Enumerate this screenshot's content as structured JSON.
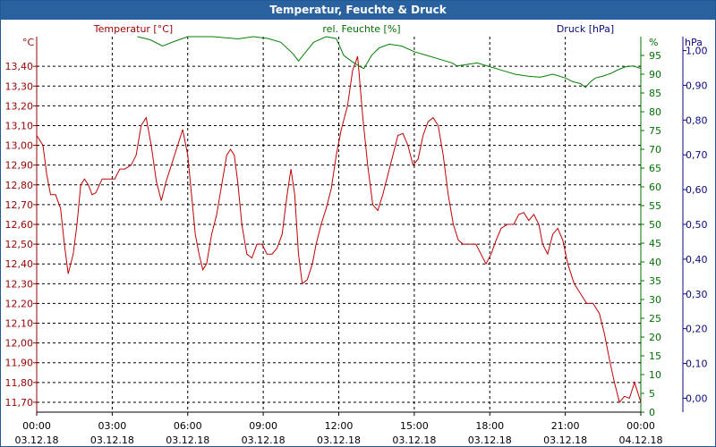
{
  "window": {
    "title": "Temperatur, Feuchte & Druck"
  },
  "chart_data": {
    "type": "line",
    "title": "Temperatur, Feuchte & Druck",
    "x_ticks": [
      {
        "time": "00:00",
        "date": "03.12.18"
      },
      {
        "time": "03:00",
        "date": "03.12.18"
      },
      {
        "time": "06:00",
        "date": "03.12.18"
      },
      {
        "time": "09:00",
        "date": "03.12.18"
      },
      {
        "time": "12:00",
        "date": "03.12.18"
      },
      {
        "time": "15:00",
        "date": "03.12.18"
      },
      {
        "time": "18:00",
        "date": "03.12.18"
      },
      {
        "time": "21:00",
        "date": "03.12.18"
      },
      {
        "time": "00:00",
        "date": "04.12.18"
      }
    ],
    "x_range_hours": [
      0,
      24
    ],
    "axes": {
      "temperature": {
        "label": "Temperatur [°C]",
        "unit": "°C",
        "color": "#9b0000",
        "range": [
          11.65,
          13.55
        ],
        "ticks": [
          "13,40",
          "13,30",
          "13,20",
          "13,10",
          "13,00",
          "12,90",
          "12,80",
          "12,70",
          "12,60",
          "12,50",
          "12,40",
          "12,30",
          "12,20",
          "12,10",
          "12,00",
          "11,90",
          "11,80",
          "11,70"
        ]
      },
      "humidity": {
        "label": "rel. Feuchte [%]",
        "unit": "%",
        "color": "#007000",
        "range": [
          0,
          100
        ],
        "ticks": [
          "95",
          "90",
          "85",
          "80",
          "75",
          "70",
          "65",
          "60",
          "55",
          "50",
          "45",
          "40",
          "35",
          "30",
          "25",
          "20",
          "15",
          "10",
          "5",
          "0"
        ]
      },
      "pressure": {
        "label": "Druck [hPa]",
        "unit": "hPa",
        "color": "#0a0a80",
        "range": [
          -0.04,
          1.04
        ],
        "ticks": [
          "1,00",
          "0,90",
          "0,80",
          "0,70",
          "0,60",
          "0,50",
          "0,40",
          "0,30",
          "0,20",
          "0,10",
          "0,00"
        ]
      }
    },
    "grid": true,
    "series": [
      {
        "name": "Temperatur [°C]",
        "axis": "temperature",
        "color": "#c00000",
        "points": [
          [
            0,
            13.05
          ],
          [
            0.25,
            13.0
          ],
          [
            0.4,
            12.85
          ],
          [
            0.55,
            12.75
          ],
          [
            0.75,
            12.75
          ],
          [
            0.95,
            12.68
          ],
          [
            1.1,
            12.5
          ],
          [
            1.25,
            12.35
          ],
          [
            1.45,
            12.45
          ],
          [
            1.6,
            12.6
          ],
          [
            1.75,
            12.8
          ],
          [
            1.9,
            12.83
          ],
          [
            2.05,
            12.8
          ],
          [
            2.2,
            12.75
          ],
          [
            2.35,
            12.76
          ],
          [
            2.6,
            12.83
          ],
          [
            2.85,
            12.83
          ],
          [
            3.1,
            12.83
          ],
          [
            3.3,
            12.88
          ],
          [
            3.5,
            12.88
          ],
          [
            3.75,
            12.9
          ],
          [
            3.95,
            12.95
          ],
          [
            4.15,
            13.1
          ],
          [
            4.35,
            13.14
          ],
          [
            4.55,
            13.0
          ],
          [
            4.75,
            12.82
          ],
          [
            4.95,
            12.72
          ],
          [
            5.15,
            12.82
          ],
          [
            5.4,
            12.92
          ],
          [
            5.6,
            13.0
          ],
          [
            5.8,
            13.08
          ],
          [
            6.0,
            12.95
          ],
          [
            6.15,
            12.75
          ],
          [
            6.3,
            12.55
          ],
          [
            6.45,
            12.45
          ],
          [
            6.6,
            12.37
          ],
          [
            6.75,
            12.4
          ],
          [
            6.95,
            12.55
          ],
          [
            7.15,
            12.65
          ],
          [
            7.35,
            12.8
          ],
          [
            7.55,
            12.95
          ],
          [
            7.7,
            12.98
          ],
          [
            7.85,
            12.95
          ],
          [
            8.0,
            12.8
          ],
          [
            8.15,
            12.6
          ],
          [
            8.35,
            12.45
          ],
          [
            8.55,
            12.43
          ],
          [
            8.75,
            12.5
          ],
          [
            8.95,
            12.5
          ],
          [
            9.15,
            12.45
          ],
          [
            9.35,
            12.45
          ],
          [
            9.55,
            12.48
          ],
          [
            9.75,
            12.55
          ],
          [
            9.95,
            12.75
          ],
          [
            10.1,
            12.88
          ],
          [
            10.25,
            12.75
          ],
          [
            10.4,
            12.45
          ],
          [
            10.55,
            12.3
          ],
          [
            10.75,
            12.32
          ],
          [
            10.95,
            12.4
          ],
          [
            11.1,
            12.5
          ],
          [
            11.3,
            12.6
          ],
          [
            11.5,
            12.68
          ],
          [
            11.7,
            12.78
          ],
          [
            11.9,
            12.95
          ],
          [
            12.1,
            13.08
          ],
          [
            12.35,
            13.2
          ],
          [
            12.55,
            13.38
          ],
          [
            12.75,
            13.45
          ],
          [
            12.95,
            13.15
          ],
          [
            13.15,
            12.9
          ],
          [
            13.35,
            12.7
          ],
          [
            13.55,
            12.67
          ],
          [
            13.75,
            12.75
          ],
          [
            13.95,
            12.85
          ],
          [
            14.15,
            12.95
          ],
          [
            14.35,
            13.05
          ],
          [
            14.55,
            13.06
          ],
          [
            14.75,
            13.0
          ],
          [
            14.95,
            12.9
          ],
          [
            15.15,
            12.93
          ],
          [
            15.35,
            13.05
          ],
          [
            15.55,
            13.12
          ],
          [
            15.75,
            13.14
          ],
          [
            15.95,
            13.1
          ],
          [
            16.15,
            12.95
          ],
          [
            16.35,
            12.75
          ],
          [
            16.55,
            12.6
          ],
          [
            16.75,
            12.52
          ],
          [
            16.95,
            12.5
          ],
          [
            17.2,
            12.5
          ],
          [
            17.45,
            12.5
          ],
          [
            17.65,
            12.45
          ],
          [
            17.85,
            12.4
          ],
          [
            18.05,
            12.45
          ],
          [
            18.25,
            12.52
          ],
          [
            18.45,
            12.58
          ],
          [
            18.7,
            12.6
          ],
          [
            18.95,
            12.6
          ],
          [
            19.15,
            12.65
          ],
          [
            19.35,
            12.66
          ],
          [
            19.55,
            12.62
          ],
          [
            19.75,
            12.65
          ],
          [
            19.95,
            12.6
          ],
          [
            20.1,
            12.5
          ],
          [
            20.3,
            12.45
          ],
          [
            20.5,
            12.55
          ],
          [
            20.7,
            12.58
          ],
          [
            20.9,
            12.52
          ],
          [
            21.1,
            12.4
          ],
          [
            21.35,
            12.3
          ],
          [
            21.6,
            12.25
          ],
          [
            21.85,
            12.2
          ],
          [
            22.1,
            12.2
          ],
          [
            22.35,
            12.15
          ],
          [
            22.55,
            12.05
          ],
          [
            22.75,
            11.92
          ],
          [
            22.95,
            11.8
          ],
          [
            23.15,
            11.7
          ],
          [
            23.35,
            11.73
          ],
          [
            23.55,
            11.72
          ],
          [
            23.75,
            11.8
          ],
          [
            24.0,
            11.7
          ]
        ]
      },
      {
        "name": "rel. Feuchte [%]",
        "axis": "humidity",
        "color": "#008000",
        "points": [
          [
            4.0,
            100
          ],
          [
            4.5,
            99.2
          ],
          [
            5.0,
            97.5
          ],
          [
            5.5,
            98.8
          ],
          [
            6.0,
            100
          ],
          [
            7.0,
            100
          ],
          [
            8.0,
            99.4
          ],
          [
            8.6,
            100
          ],
          [
            9.2,
            99.5
          ],
          [
            9.7,
            98.5
          ],
          [
            10.2,
            95.3
          ],
          [
            10.4,
            93.5
          ],
          [
            10.7,
            96
          ],
          [
            11.0,
            98.5
          ],
          [
            11.5,
            100
          ],
          [
            11.9,
            99.5
          ],
          [
            12.2,
            95
          ],
          [
            12.5,
            93.5
          ],
          [
            12.8,
            92.2
          ],
          [
            13.0,
            91.5
          ],
          [
            13.3,
            95
          ],
          [
            13.6,
            97
          ],
          [
            14.0,
            98
          ],
          [
            14.5,
            97.5
          ],
          [
            15.0,
            96
          ],
          [
            15.5,
            95
          ],
          [
            16.0,
            94
          ],
          [
            16.5,
            93
          ],
          [
            16.7,
            92.2
          ],
          [
            17.0,
            92.5
          ],
          [
            17.5,
            93
          ],
          [
            18.0,
            92
          ],
          [
            18.5,
            91
          ],
          [
            19.0,
            90
          ],
          [
            19.5,
            89.5
          ],
          [
            20.0,
            89.2
          ],
          [
            20.5,
            90
          ],
          [
            21.0,
            89
          ],
          [
            21.3,
            88
          ],
          [
            21.6,
            87.5
          ],
          [
            21.8,
            86.5
          ],
          [
            22.0,
            88
          ],
          [
            22.2,
            89
          ],
          [
            22.5,
            89.5
          ],
          [
            22.8,
            90.2
          ],
          [
            23.1,
            91.2
          ],
          [
            23.4,
            92
          ],
          [
            23.7,
            92.2
          ],
          [
            24.0,
            91.5
          ]
        ]
      }
    ]
  }
}
